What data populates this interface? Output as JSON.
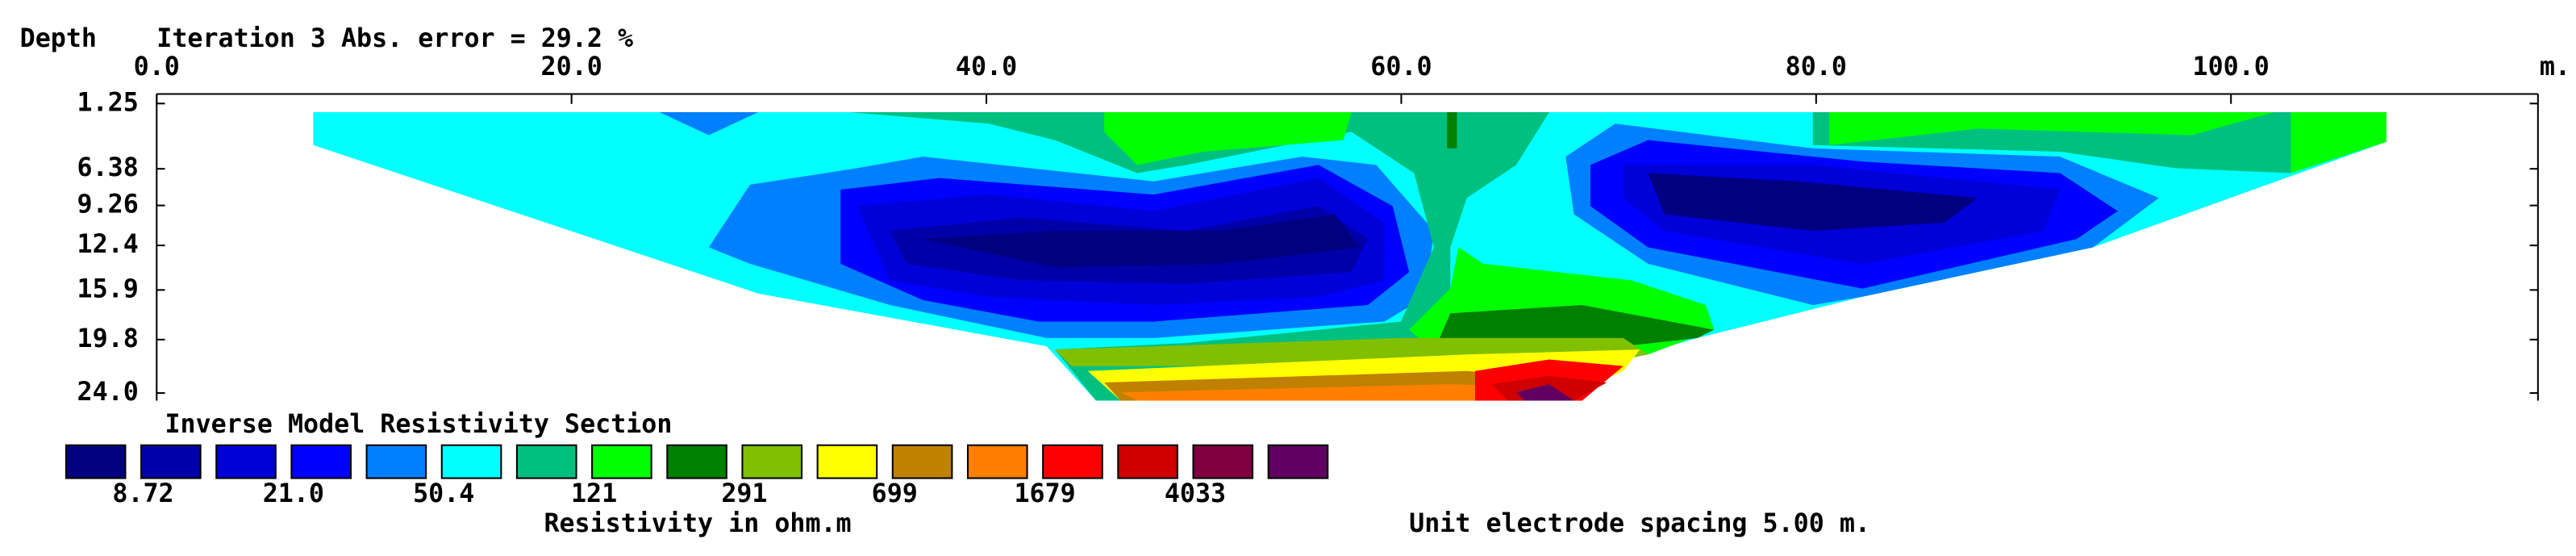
{
  "chart_data": {
    "type": "contour",
    "title": "Inverse Model Resistivity Section",
    "subtitle": "Iteration 3 Abs. error = 29.2 %",
    "y_label": "Depth",
    "x_unit": "m.",
    "xlim": [
      0,
      114.8
    ],
    "xticks": [
      {
        "value": 0,
        "label": "0.0"
      },
      {
        "value": 20,
        "label": "20.0"
      },
      {
        "value": 40,
        "label": "40.0"
      },
      {
        "value": 60,
        "label": "60.0"
      },
      {
        "value": 80,
        "label": "80.0"
      },
      {
        "value": 100,
        "label": "100.0"
      }
    ],
    "ylim": [
      0.5,
      24.6
    ],
    "yticks": [
      1.25,
      6.38,
      9.26,
      12.4,
      15.9,
      19.8,
      {
        "value": 24,
        "label": "24.0"
      }
    ],
    "colorbar": {
      "colors": [
        "#000080",
        "#0000a8",
        "#0000d8",
        "#0000ff",
        "#0080ff",
        "#00ffff",
        "#00c080",
        "#00ff00",
        "#008000",
        "#80c000",
        "#ffff00",
        "#c08000",
        "#ff8000",
        "#ff0000",
        "#d00000",
        "#800040",
        "#600060"
      ],
      "ticks": [
        8.72,
        {
          "value": 21,
          "label": "21.0"
        },
        50.4,
        121,
        291,
        699,
        1679,
        4033
      ],
      "label": "Resistivity in ohm.m"
    },
    "note": "Unit electrode spacing 5.00 m."
  }
}
